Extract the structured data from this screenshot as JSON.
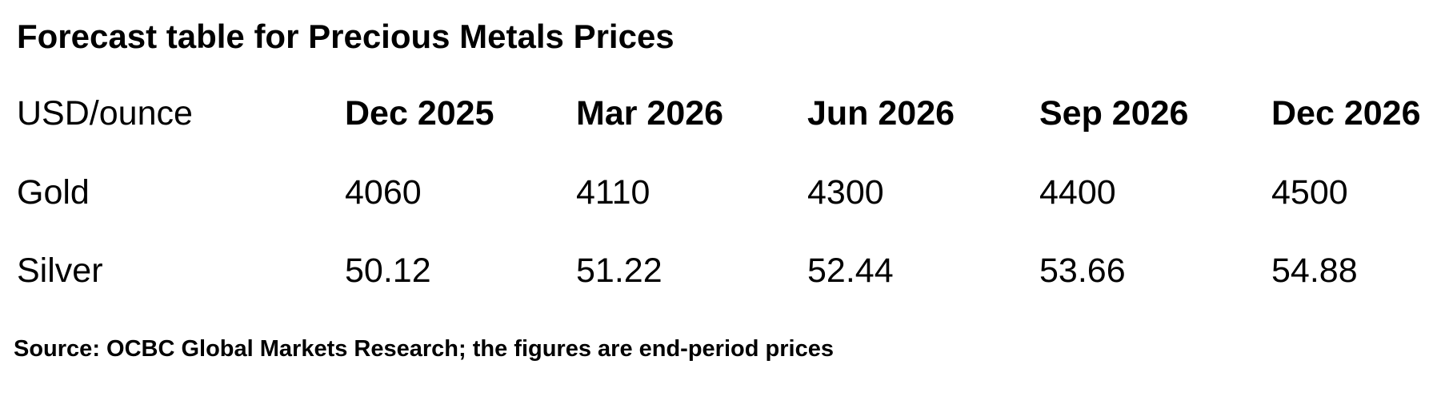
{
  "title": "Forecast table for Precious Metals Prices",
  "table": {
    "unit_label": "USD/ounce",
    "columns": [
      "Dec 2025",
      "Mar 2026",
      "Jun 2026",
      "Sep 2026",
      "Dec 2026"
    ],
    "rows": [
      {
        "label": "Gold",
        "values": [
          "4060",
          "4110",
          "4300",
          "4400",
          "4500"
        ]
      },
      {
        "label": "Silver",
        "values": [
          "50.12",
          "51.22",
          "52.44",
          "53.66",
          "54.88"
        ]
      }
    ]
  },
  "source": "Source: OCBC Global Markets Research; the figures are end-period prices"
}
